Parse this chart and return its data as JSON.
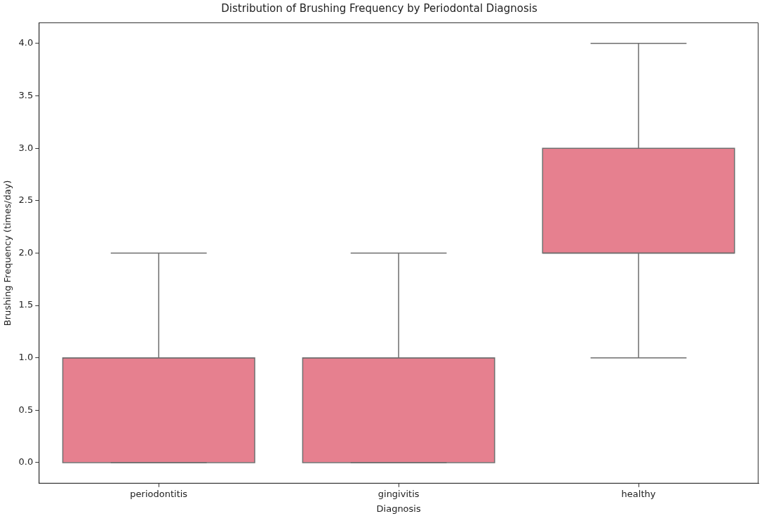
{
  "chart_data": {
    "type": "box",
    "title": "Distribution of Brushing Frequency by Periodontal Diagnosis",
    "xlabel": "Diagnosis",
    "ylabel": "Brushing Frequency (times/day)",
    "categories": [
      "periodontitis",
      "gingivitis",
      "healthy"
    ],
    "color": "#e6808f",
    "boxes": [
      {
        "low": 0,
        "q1": 0,
        "median": 1,
        "q3": 1,
        "high": 2
      },
      {
        "low": 0,
        "q1": 0,
        "median": 1,
        "q3": 1,
        "high": 2
      },
      {
        "low": 1,
        "q1": 2,
        "median": 2,
        "q3": 3,
        "high": 4
      }
    ],
    "ylim": [
      -0.2,
      4.2
    ],
    "yticks": [
      {
        "value": 0,
        "label": "0.0"
      },
      {
        "value": 0.5,
        "label": "0.5"
      },
      {
        "value": 1,
        "label": "1.0"
      },
      {
        "value": 1.5,
        "label": "1.5"
      },
      {
        "value": 2,
        "label": "2.0"
      },
      {
        "value": 2.5,
        "label": "2.5"
      },
      {
        "value": 3,
        "label": "3.0"
      },
      {
        "value": 3.5,
        "label": "3.5"
      },
      {
        "value": 4,
        "label": "4.0"
      }
    ]
  }
}
